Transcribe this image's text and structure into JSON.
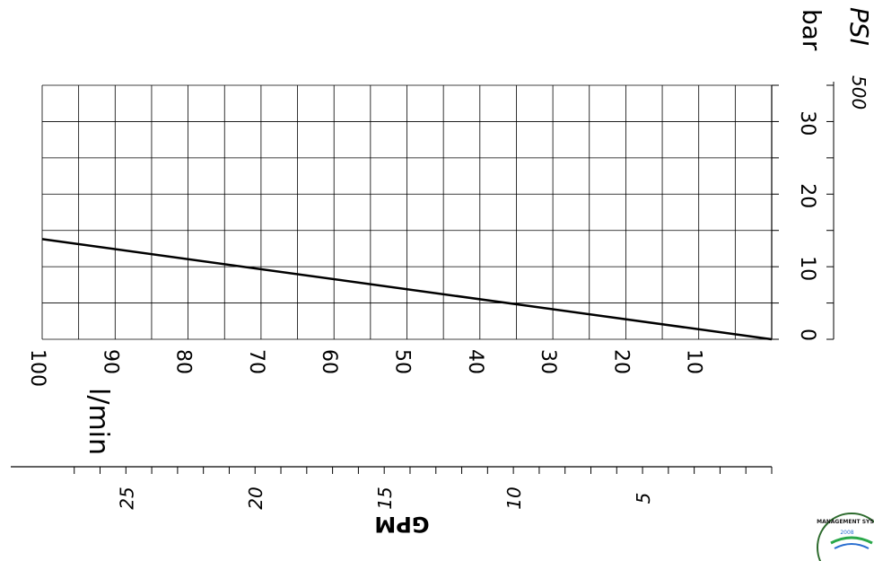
{
  "chart_data": {
    "type": "line",
    "x_axis_lpm": {
      "label": "l/min",
      "range": [
        100,
        0
      ],
      "tick_labels": [
        "100",
        "90",
        "80",
        "70",
        "60",
        "50",
        "40",
        "30",
        "20",
        "10"
      ]
    },
    "gpm_axis": {
      "label": "GPM",
      "tick_labels": [
        "25",
        "20",
        "15",
        "10",
        "5"
      ]
    },
    "y_axis_bar": {
      "label": "bar",
      "range": [
        0,
        35
      ],
      "tick_labels": [
        "0",
        "10",
        "20",
        "30"
      ]
    },
    "y_axis_psi": {
      "label": "PSI",
      "tick_labels": [
        "500"
      ]
    },
    "series": [
      {
        "x": [
          100,
          0
        ],
        "y": [
          13.8,
          0
        ]
      }
    ],
    "grid": true
  },
  "iso_seal_text": "MANAGEMENT SYSTEM 2008"
}
